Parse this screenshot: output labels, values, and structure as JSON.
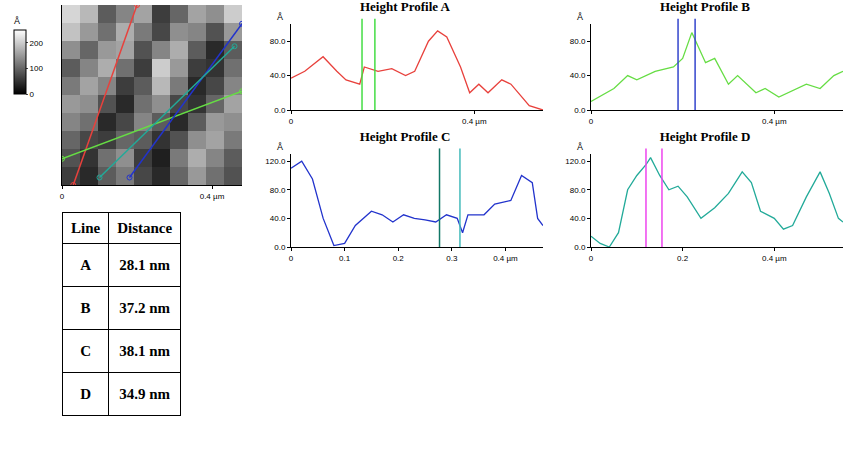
{
  "chart_data": [
    {
      "type": "heatmap",
      "x": [
        0.024,
        0.072,
        0.12,
        0.168,
        0.216,
        0.264,
        0.312,
        0.36,
        0.408,
        0.456
      ],
      "y": [
        0.024,
        0.072,
        0.12,
        0.168,
        0.216,
        0.264,
        0.312,
        0.36,
        0.408,
        0.456
      ],
      "z": [
        [
          60,
          40,
          90,
          120,
          70,
          40,
          100,
          150,
          110,
          80
        ],
        [
          80,
          50,
          110,
          140,
          60,
          30,
          120,
          170,
          130,
          90
        ],
        [
          100,
          70,
          60,
          100,
          90,
          50,
          80,
          140,
          160,
          120
        ],
        [
          130,
          110,
          40,
          70,
          130,
          90,
          40,
          90,
          150,
          140
        ],
        [
          150,
          140,
          80,
          40,
          110,
          140,
          70,
          50,
          100,
          160
        ],
        [
          120,
          160,
          130,
          60,
          90,
          180,
          120,
          40,
          70,
          130
        ],
        [
          90,
          130,
          170,
          110,
          60,
          200,
          150,
          60,
          50,
          110
        ],
        [
          140,
          100,
          150,
          160,
          80,
          130,
          170,
          90,
          40,
          90
        ],
        [
          190,
          150,
          110,
          170,
          120,
          70,
          140,
          130,
          80,
          150
        ],
        [
          210,
          180,
          90,
          130,
          160,
          60,
          100,
          160,
          140,
          200
        ]
      ],
      "zlim": [
        0,
        250
      ],
      "zticks": [
        0,
        100,
        200
      ],
      "z_label": "Å",
      "xlim": [
        0,
        0.48
      ],
      "ylim": [
        0,
        0.48
      ],
      "xticks": [
        0,
        {
          "value": 0.4,
          "label": "0.4 µm"
        }
      ],
      "tick_labels": "x",
      "lines": [
        {
          "color": "#e8413c",
          "x": [
            0.03,
            0.2
          ],
          "y": [
            0.0,
            0.48
          ]
        },
        {
          "color": "#66dd44",
          "x": [
            0.0,
            0.48
          ],
          "y": [
            0.07,
            0.25
          ]
        },
        {
          "color": "#2233cc",
          "x": [
            0.18,
            0.48
          ],
          "y": [
            0.02,
            0.43
          ]
        },
        {
          "color": "#22aa99",
          "x": [
            0.1,
            0.46
          ],
          "y": [
            0.02,
            0.37
          ]
        }
      ]
    },
    {
      "type": "line",
      "title": "Height Profile A",
      "y_label": "Å",
      "color": "#e8413c",
      "x": [
        0,
        0.03,
        0.07,
        0.1,
        0.12,
        0.15,
        0.16,
        0.19,
        0.22,
        0.25,
        0.27,
        0.3,
        0.32,
        0.34,
        0.37,
        0.39,
        0.41,
        0.43,
        0.46,
        0.48,
        0.52,
        0.55
      ],
      "values": [
        37,
        45,
        62,
        45,
        35,
        30,
        50,
        45,
        48,
        40,
        45,
        80,
        92,
        85,
        50,
        20,
        30,
        20,
        35,
        30,
        5,
        0
      ],
      "xlim": [
        0,
        0.55
      ],
      "ylim": [
        0,
        100
      ],
      "xticks": [
        0,
        {
          "value": 0.4,
          "label": "0.4 µm"
        }
      ],
      "yticks": [
        {
          "value": 0,
          "label": "0.0"
        },
        {
          "value": 40,
          "label": "40.0"
        },
        {
          "value": 80,
          "label": "80.0"
        }
      ],
      "cursors": {
        "x": [
          0.155,
          0.1831
        ],
        "colors": [
          "#44dd44",
          "#44dd44"
        ]
      }
    },
    {
      "type": "line",
      "title": "Height Profile B",
      "y_label": "Å",
      "color": "#66dd44",
      "x": [
        0,
        0.05,
        0.08,
        0.1,
        0.14,
        0.18,
        0.2,
        0.22,
        0.25,
        0.27,
        0.3,
        0.32,
        0.36,
        0.38,
        0.41,
        0.43,
        0.47,
        0.5,
        0.53,
        0.55
      ],
      "values": [
        10,
        25,
        40,
        35,
        45,
        50,
        60,
        90,
        55,
        60,
        30,
        40,
        20,
        25,
        15,
        20,
        30,
        25,
        40,
        45
      ],
      "xlim": [
        0,
        0.55
      ],
      "ylim": [
        0,
        100
      ],
      "xticks": [
        0,
        {
          "value": 0.4,
          "label": "0.4 µm"
        }
      ],
      "yticks": [
        {
          "value": 0,
          "label": "0.0"
        },
        {
          "value": 40,
          "label": "40.0"
        },
        {
          "value": 80,
          "label": "80.0"
        }
      ],
      "cursors": {
        "x": [
          0.19,
          0.2272
        ],
        "colors": [
          "#3344cc",
          "#3344cc"
        ]
      }
    },
    {
      "type": "line",
      "title": "Height Profile C",
      "y_label": "Å",
      "color": "#2233cc",
      "x": [
        0,
        0.02,
        0.04,
        0.06,
        0.08,
        0.1,
        0.12,
        0.15,
        0.17,
        0.19,
        0.21,
        0.23,
        0.25,
        0.27,
        0.29,
        0.31,
        0.32,
        0.33,
        0.36,
        0.38,
        0.41,
        0.43,
        0.45,
        0.46,
        0.47
      ],
      "values": [
        110,
        120,
        95,
        40,
        2,
        5,
        30,
        50,
        45,
        35,
        45,
        40,
        38,
        35,
        45,
        40,
        20,
        45,
        45,
        60,
        65,
        100,
        90,
        40,
        30
      ],
      "xlim": [
        0,
        0.47
      ],
      "ylim": [
        0,
        130
      ],
      "xticks": [
        0,
        0.1,
        0.2,
        0.3,
        {
          "value": 0.4,
          "label": "0.4 µm"
        }
      ],
      "yticks": [
        {
          "value": 0,
          "label": "0.0"
        },
        {
          "value": 40,
          "label": "40.0"
        },
        {
          "value": 80,
          "label": "80.0"
        },
        {
          "value": 120,
          "label": "120.0"
        }
      ],
      "cursors": {
        "x": [
          0.277,
          0.3151
        ],
        "colors": [
          "#117766",
          "#44bbbb"
        ]
      }
    },
    {
      "type": "line",
      "title": "Height Profile D",
      "y_label": "Å",
      "color": "#22aa99",
      "x": [
        0,
        0.02,
        0.04,
        0.06,
        0.08,
        0.1,
        0.12,
        0.13,
        0.15,
        0.17,
        0.19,
        0.21,
        0.24,
        0.27,
        0.3,
        0.33,
        0.35,
        0.37,
        0.4,
        0.42,
        0.44,
        0.47,
        0.5,
        0.52,
        0.54,
        0.55
      ],
      "values": [
        15,
        5,
        0,
        20,
        80,
        100,
        115,
        125,
        100,
        80,
        85,
        70,
        40,
        55,
        75,
        105,
        90,
        50,
        40,
        25,
        30,
        70,
        105,
        75,
        40,
        35
      ],
      "xlim": [
        0,
        0.55
      ],
      "ylim": [
        0,
        130
      ],
      "xticks": [
        0,
        0.2,
        {
          "value": 0.4,
          "label": "0.4 µm"
        }
      ],
      "yticks": [
        {
          "value": 0,
          "label": "0.0"
        },
        {
          "value": 40,
          "label": "40.0"
        },
        {
          "value": 80,
          "label": "80.0"
        },
        {
          "value": 120,
          "label": "120.0"
        }
      ],
      "cursors": {
        "x": [
          0.12,
          0.1549
        ],
        "colors": [
          "#ee44ee",
          "#ee44ee"
        ]
      }
    }
  ],
  "table": {
    "header": [
      "Line",
      "Distance"
    ],
    "rows": [
      [
        "A",
        "28.1 nm"
      ],
      [
        "B",
        "37.2 nm"
      ],
      [
        "C",
        "38.1 nm"
      ],
      [
        "D",
        "34.9 nm"
      ]
    ]
  }
}
